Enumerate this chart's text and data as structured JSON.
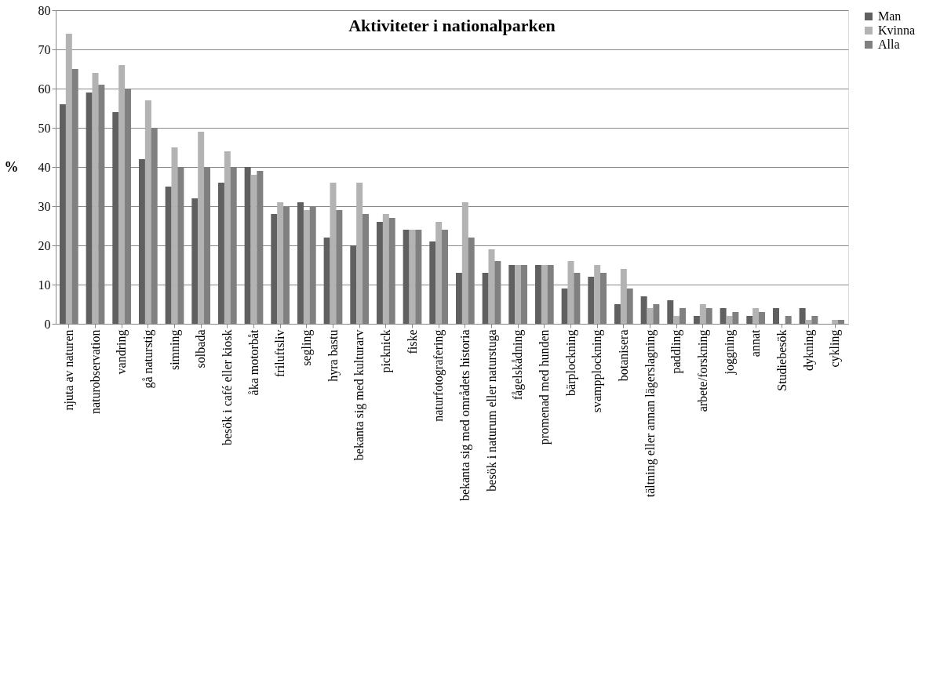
{
  "chart_data": {
    "type": "bar",
    "title": "Aktiviteter i nationalparken",
    "ylabel": "%",
    "categories": [
      "njuta av naturen",
      "naturobservation",
      "vandring",
      "gå naturstig",
      "simning",
      "solbada",
      "besök i café eller kiosk",
      "åka motorbåt",
      "friluftsliv",
      "segling",
      "hyra bastu",
      "bekanta sig med kulturarv",
      "picknick",
      "fiske",
      "naturfotografering",
      "bekanta sig med områdets historia",
      "besök i naturum eller naturstuga",
      "fågelskådning",
      "promenad med hunden",
      "bärplockning",
      "svampplockning",
      "botanisera",
      "tältning eller annan lägerslagning",
      "paddling",
      "arbete/forskning",
      "joggning",
      "annat",
      "Studiebesök",
      "dykning",
      "cykling"
    ],
    "series": [
      {
        "name": "Man",
        "color": "#606060",
        "values": [
          56,
          59,
          54,
          42,
          35,
          32,
          36,
          40,
          28,
          31,
          22,
          20,
          26,
          24,
          21,
          13,
          13,
          15,
          15,
          9,
          12,
          5,
          7,
          6,
          2,
          4,
          2,
          4,
          4,
          0
        ]
      },
      {
        "name": "Kvinna",
        "color": "#b3b3b3",
        "values": [
          74,
          64,
          66,
          57,
          45,
          49,
          44,
          38,
          31,
          29,
          36,
          36,
          28,
          24,
          26,
          31,
          19,
          15,
          15,
          16,
          15,
          14,
          4,
          2,
          5,
          2,
          4,
          0,
          1,
          1
        ]
      },
      {
        "name": "Alla",
        "color": "#808080",
        "values": [
          65,
          61,
          60,
          50,
          40,
          40,
          40,
          39,
          30,
          30,
          29,
          28,
          27,
          24,
          24,
          22,
          16,
          15,
          15,
          13,
          13,
          9,
          5,
          4,
          4,
          3,
          3,
          2,
          2,
          1
        ]
      }
    ],
    "ylim": [
      0,
      80
    ],
    "yticks": [
      0,
      10,
      20,
      30,
      40,
      50,
      60,
      70,
      80
    ],
    "grid": "y",
    "legend": "right"
  }
}
